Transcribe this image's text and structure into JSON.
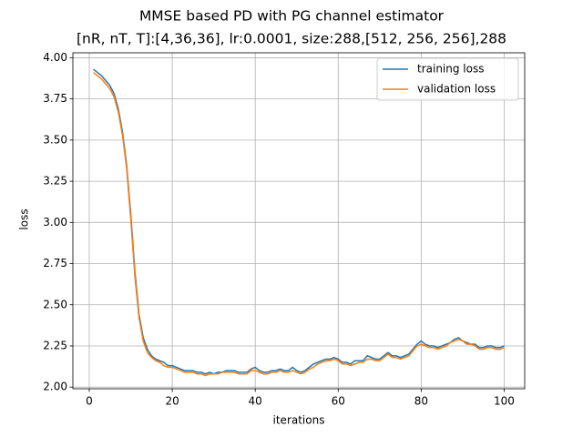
{
  "chart_data": {
    "type": "line",
    "title": "MMSE based PD with PG channel estimator",
    "subtitle": "[nR, nT, T]:[4,36,36], lr:0.0001, size:288,[512, 256, 256],288",
    "x_label": "iterations",
    "y_label": "loss",
    "x": [
      1,
      2,
      3,
      4,
      5,
      6,
      7,
      8,
      9,
      10,
      11,
      12,
      13,
      14,
      15,
      16,
      17,
      18,
      19,
      20,
      21,
      22,
      23,
      24,
      25,
      26,
      27,
      28,
      29,
      30,
      31,
      32,
      33,
      34,
      35,
      36,
      37,
      38,
      39,
      40,
      41,
      42,
      43,
      44,
      45,
      46,
      47,
      48,
      49,
      50,
      51,
      52,
      53,
      54,
      55,
      56,
      57,
      58,
      59,
      60,
      61,
      62,
      63,
      64,
      65,
      66,
      67,
      68,
      69,
      70,
      71,
      72,
      73,
      74,
      75,
      76,
      77,
      78,
      79,
      80,
      81,
      82,
      83,
      84,
      85,
      86,
      87,
      88,
      89,
      90,
      91,
      92,
      93,
      94,
      95,
      96,
      97,
      98,
      99,
      100
    ],
    "series": [
      {
        "name": "training loss",
        "color": "#1f77b4",
        "values": [
          3.93,
          3.91,
          3.89,
          3.86,
          3.83,
          3.78,
          3.69,
          3.55,
          3.35,
          3.05,
          2.7,
          2.44,
          2.3,
          2.23,
          2.19,
          2.17,
          2.16,
          2.15,
          2.13,
          2.13,
          2.12,
          2.11,
          2.1,
          2.1,
          2.1,
          2.09,
          2.09,
          2.08,
          2.09,
          2.08,
          2.09,
          2.09,
          2.1,
          2.1,
          2.1,
          2.09,
          2.09,
          2.09,
          2.11,
          2.12,
          2.1,
          2.09,
          2.09,
          2.1,
          2.1,
          2.11,
          2.1,
          2.1,
          2.12,
          2.1,
          2.09,
          2.1,
          2.12,
          2.14,
          2.15,
          2.16,
          2.17,
          2.17,
          2.18,
          2.17,
          2.15,
          2.15,
          2.14,
          2.16,
          2.16,
          2.16,
          2.19,
          2.18,
          2.17,
          2.17,
          2.19,
          2.21,
          2.19,
          2.19,
          2.18,
          2.19,
          2.2,
          2.23,
          2.26,
          2.28,
          2.26,
          2.25,
          2.25,
          2.24,
          2.25,
          2.26,
          2.27,
          2.29,
          2.3,
          2.28,
          2.27,
          2.26,
          2.26,
          2.24,
          2.24,
          2.25,
          2.25,
          2.24,
          2.24,
          2.25
        ]
      },
      {
        "name": "validation loss",
        "color": "#ff7f0e",
        "values": [
          3.91,
          3.89,
          3.87,
          3.84,
          3.81,
          3.76,
          3.67,
          3.53,
          3.33,
          3.02,
          2.67,
          2.42,
          2.28,
          2.21,
          2.18,
          2.16,
          2.15,
          2.13,
          2.12,
          2.12,
          2.11,
          2.1,
          2.09,
          2.09,
          2.09,
          2.08,
          2.08,
          2.07,
          2.08,
          2.08,
          2.08,
          2.09,
          2.09,
          2.09,
          2.09,
          2.08,
          2.08,
          2.08,
          2.1,
          2.1,
          2.09,
          2.08,
          2.08,
          2.09,
          2.09,
          2.1,
          2.09,
          2.09,
          2.1,
          2.09,
          2.08,
          2.09,
          2.11,
          2.12,
          2.14,
          2.15,
          2.16,
          2.16,
          2.17,
          2.16,
          2.14,
          2.14,
          2.13,
          2.14,
          2.15,
          2.15,
          2.17,
          2.17,
          2.16,
          2.16,
          2.18,
          2.2,
          2.18,
          2.18,
          2.17,
          2.18,
          2.19,
          2.22,
          2.25,
          2.26,
          2.25,
          2.24,
          2.24,
          2.23,
          2.24,
          2.25,
          2.27,
          2.28,
          2.29,
          2.28,
          2.26,
          2.26,
          2.25,
          2.23,
          2.23,
          2.24,
          2.24,
          2.23,
          2.23,
          2.24
        ]
      }
    ],
    "xlim": [
      -3.95,
      104.95
    ],
    "xticks": [
      0,
      20,
      40,
      60,
      80,
      100
    ],
    "ylim": [
      1.99,
      4.03
    ],
    "yticks": [
      {
        "value": 2.0,
        "label": "2.00"
      },
      {
        "value": 2.25,
        "label": "2.25"
      },
      {
        "value": 2.5,
        "label": "2.50"
      },
      {
        "value": 2.75,
        "label": "2.75"
      },
      {
        "value": 3.0,
        "label": "3.00"
      },
      {
        "value": 3.25,
        "label": "3.25"
      },
      {
        "value": 3.5,
        "label": "3.50"
      },
      {
        "value": 3.75,
        "label": "3.75"
      },
      {
        "value": 4.0,
        "label": "4.00"
      }
    ],
    "grid": true,
    "legend": "upper right"
  }
}
